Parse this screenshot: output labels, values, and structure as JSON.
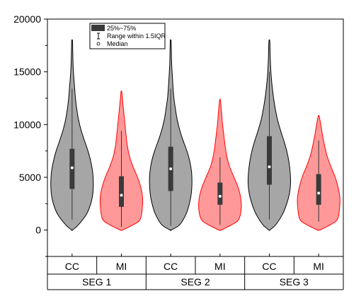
{
  "chart_data": {
    "type": "violin",
    "title": "",
    "xlabel": "",
    "ylabel": "",
    "ylim": [
      -2500,
      20000
    ],
    "y_ticks": [
      0,
      5000,
      10000,
      15000,
      20000
    ],
    "y_tick_labels": [
      "0",
      "5000",
      "10000",
      "15000",
      "20000"
    ],
    "grid": false,
    "legend": {
      "placement": "top-left",
      "entries": [
        "25%~75%",
        "Range within 1.5IQR",
        "Median"
      ]
    },
    "groups": [
      "SEG 1",
      "SEG 2",
      "SEG 3"
    ],
    "subcategories": [
      "CC",
      "MI",
      "CC",
      "MI",
      "CC",
      "MI"
    ],
    "series": [
      {
        "group": "SEG 1",
        "category": "CC",
        "fill": "#a6a6a6",
        "stroke": "#000000",
        "min": 0,
        "max": 18000,
        "q1": 3900,
        "median": 5900,
        "q3": 7700,
        "whisker_low": 1000,
        "whisker_high": 13400,
        "density": [
          [
            0,
            0.02
          ],
          [
            500,
            0.3
          ],
          [
            1500,
            0.68
          ],
          [
            2500,
            0.88
          ],
          [
            3500,
            0.98
          ],
          [
            4500,
            1.0
          ],
          [
            5500,
            0.97
          ],
          [
            6500,
            0.88
          ],
          [
            7500,
            0.75
          ],
          [
            8500,
            0.58
          ],
          [
            9500,
            0.42
          ],
          [
            10500,
            0.3
          ],
          [
            11500,
            0.22
          ],
          [
            12500,
            0.16
          ],
          [
            13500,
            0.12
          ],
          [
            14500,
            0.08
          ],
          [
            15500,
            0.05
          ],
          [
            16500,
            0.035
          ],
          [
            17500,
            0.025
          ],
          [
            18000,
            0.015
          ]
        ]
      },
      {
        "group": "SEG 1",
        "category": "MI",
        "fill": "#ff9999",
        "stroke": "#ff0000",
        "min": 0,
        "max": 13100,
        "q1": 2200,
        "median": 3300,
        "q3": 5100,
        "whisker_low": 300,
        "whisker_high": 9400,
        "density": [
          [
            0,
            0.05
          ],
          [
            500,
            0.55
          ],
          [
            1000,
            0.88
          ],
          [
            2000,
            0.98
          ],
          [
            3000,
            1.0
          ],
          [
            4000,
            0.92
          ],
          [
            5000,
            0.76
          ],
          [
            6000,
            0.55
          ],
          [
            7000,
            0.38
          ],
          [
            8000,
            0.28
          ],
          [
            9000,
            0.22
          ],
          [
            10000,
            0.17
          ],
          [
            11000,
            0.12
          ],
          [
            12000,
            0.07
          ],
          [
            13100,
            0.02
          ]
        ]
      },
      {
        "group": "SEG 2",
        "category": "CC",
        "fill": "#a6a6a6",
        "stroke": "#000000",
        "min": 0,
        "max": 18000,
        "q1": 3700,
        "median": 5800,
        "q3": 7900,
        "whisker_low": 400,
        "whisker_high": 13400,
        "density": [
          [
            0,
            0.02
          ],
          [
            500,
            0.42
          ],
          [
            1500,
            0.72
          ],
          [
            2500,
            0.88
          ],
          [
            3500,
            0.97
          ],
          [
            4500,
            1.0
          ],
          [
            5500,
            0.98
          ],
          [
            6500,
            0.9
          ],
          [
            7500,
            0.76
          ],
          [
            8500,
            0.58
          ],
          [
            9500,
            0.42
          ],
          [
            10500,
            0.3
          ],
          [
            11500,
            0.22
          ],
          [
            12500,
            0.15
          ],
          [
            13500,
            0.11
          ],
          [
            14500,
            0.08
          ],
          [
            15500,
            0.05
          ],
          [
            16500,
            0.035
          ],
          [
            17500,
            0.025
          ],
          [
            18000,
            0.015
          ]
        ]
      },
      {
        "group": "SEG 2",
        "category": "MI",
        "fill": "#ff9999",
        "stroke": "#ff0000",
        "min": 0,
        "max": 12300,
        "q1": 2400,
        "median": 3200,
        "q3": 4500,
        "whisker_low": 500,
        "whisker_high": 6900,
        "density": [
          [
            0,
            0.05
          ],
          [
            500,
            0.55
          ],
          [
            1000,
            0.88
          ],
          [
            2000,
            1.0
          ],
          [
            3000,
            0.98
          ],
          [
            4000,
            0.86
          ],
          [
            5000,
            0.66
          ],
          [
            6000,
            0.45
          ],
          [
            7000,
            0.32
          ],
          [
            8000,
            0.24
          ],
          [
            9000,
            0.18
          ],
          [
            10000,
            0.12
          ],
          [
            11000,
            0.08
          ],
          [
            12300,
            0.02
          ]
        ]
      },
      {
        "group": "SEG 3",
        "category": "CC",
        "fill": "#a6a6a6",
        "stroke": "#000000",
        "min": 0,
        "max": 18000,
        "q1": 4300,
        "median": 6000,
        "q3": 8900,
        "whisker_low": 1000,
        "whisker_high": 15000,
        "density": [
          [
            0,
            0.02
          ],
          [
            500,
            0.3
          ],
          [
            1500,
            0.62
          ],
          [
            2500,
            0.82
          ],
          [
            3500,
            0.95
          ],
          [
            4500,
            1.0
          ],
          [
            5500,
            0.98
          ],
          [
            6500,
            0.92
          ],
          [
            7500,
            0.82
          ],
          [
            8500,
            0.68
          ],
          [
            9500,
            0.52
          ],
          [
            10500,
            0.38
          ],
          [
            11500,
            0.28
          ],
          [
            12500,
            0.2
          ],
          [
            13500,
            0.14
          ],
          [
            14500,
            0.09
          ],
          [
            15500,
            0.06
          ],
          [
            16500,
            0.04
          ],
          [
            17500,
            0.03
          ],
          [
            18000,
            0.015
          ]
        ]
      },
      {
        "group": "SEG 3",
        "category": "MI",
        "fill": "#ff9999",
        "stroke": "#ff0000",
        "min": 0,
        "max": 10800,
        "q1": 2400,
        "median": 3500,
        "q3": 5300,
        "whisker_low": 800,
        "whisker_high": 8500,
        "density": [
          [
            0,
            0.05
          ],
          [
            500,
            0.55
          ],
          [
            1000,
            0.88
          ],
          [
            2000,
            0.98
          ],
          [
            3000,
            1.0
          ],
          [
            4000,
            0.92
          ],
          [
            5000,
            0.78
          ],
          [
            6000,
            0.58
          ],
          [
            7000,
            0.4
          ],
          [
            8000,
            0.28
          ],
          [
            9000,
            0.18
          ],
          [
            10000,
            0.1
          ],
          [
            10800,
            0.02
          ]
        ]
      }
    ]
  }
}
